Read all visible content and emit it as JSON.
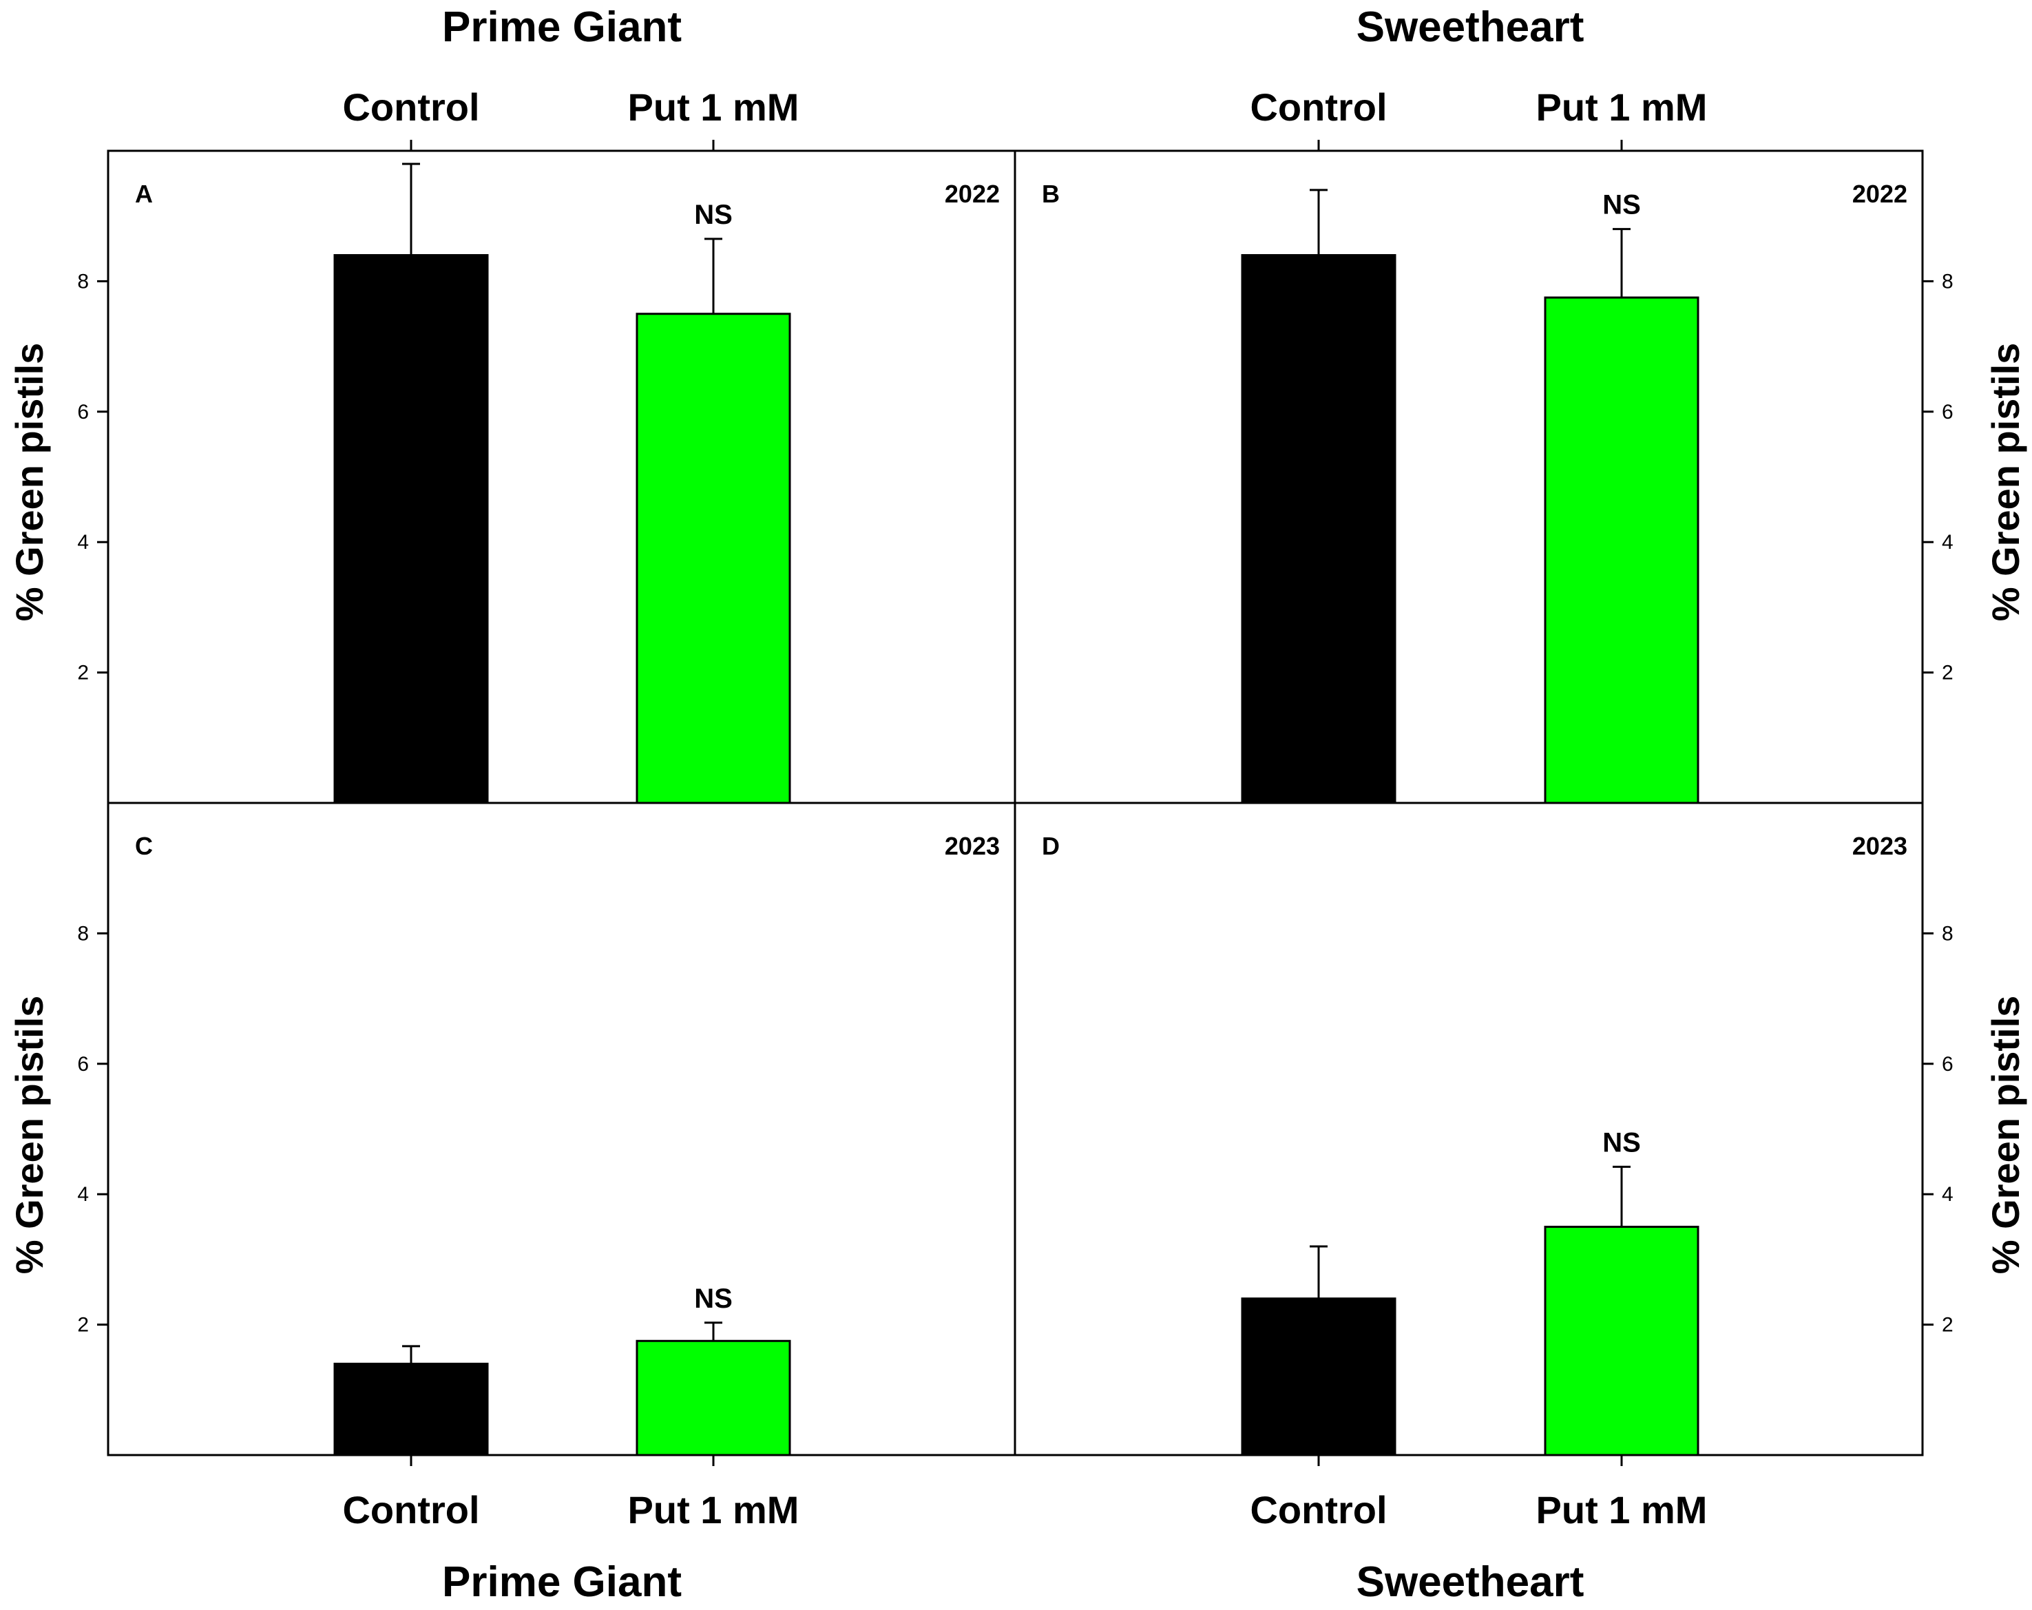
{
  "chart_data": {
    "type": "bar",
    "ylabel": "% Green pistils",
    "ylim": [
      0,
      10
    ],
    "yticks": [
      2,
      4,
      6,
      8
    ],
    "categories": [
      "Control",
      "Put 1 mM"
    ],
    "colors": {
      "Control": "#000000",
      "Put 1 mM": "#00ff00"
    },
    "cultivars": [
      "Prime Giant",
      "Sweetheart"
    ],
    "panels": [
      {
        "id": "A",
        "cultivar": "Prime Giant",
        "year": "2022",
        "values": [
          8.4,
          7.5
        ],
        "errors": [
          1.4,
          1.15
        ],
        "annotation": "NS"
      },
      {
        "id": "B",
        "cultivar": "Sweetheart",
        "year": "2022",
        "values": [
          8.4,
          7.75
        ],
        "errors": [
          1.0,
          1.05
        ],
        "annotation": "NS"
      },
      {
        "id": "C",
        "cultivar": "Prime Giant",
        "year": "2023",
        "values": [
          1.4,
          1.75
        ],
        "errors": [
          0.27,
          0.28
        ],
        "annotation": "NS"
      },
      {
        "id": "D",
        "cultivar": "Sweetheart",
        "year": "2023",
        "values": [
          2.4,
          3.5
        ],
        "errors": [
          0.8,
          0.92
        ],
        "annotation": "NS"
      }
    ]
  }
}
